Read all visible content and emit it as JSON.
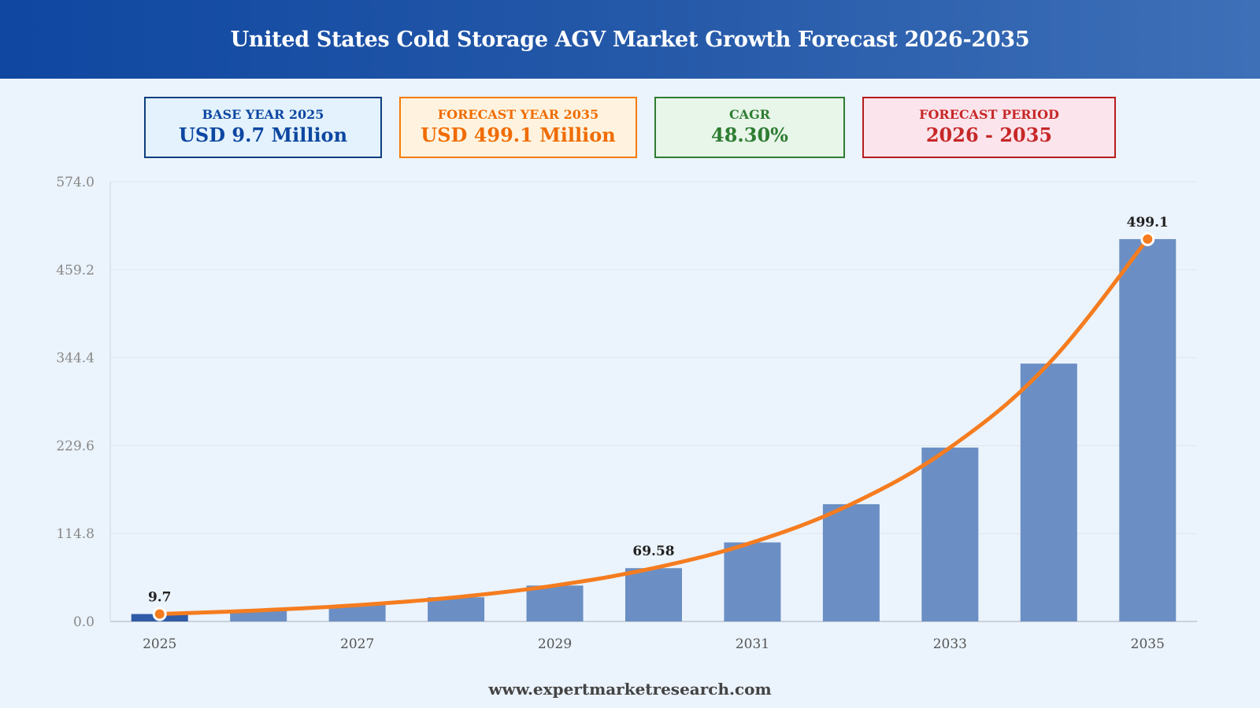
{
  "header": {
    "title": "United States Cold Storage AGV Market Growth Forecast 2026-2035"
  },
  "cards": {
    "base": {
      "label": "BASE YEAR 2025",
      "value": "USD 9.7 Million"
    },
    "forecast": {
      "label": "FORECAST YEAR 2035",
      "value": "USD 499.1 Million"
    },
    "cagr": {
      "label": "CAGR",
      "value": "48.30%"
    },
    "period": {
      "label": "FORECAST PERIOD",
      "value": "2026 - 2035"
    }
  },
  "footer": {
    "text": "www.expertmarketresearch.com"
  },
  "colors": {
    "bar": "#6b8fc4",
    "bar_base": "#2f5ca8",
    "line": "#f57c1f",
    "grid": "#dfe6ef"
  },
  "chart_data": {
    "type": "bar",
    "title": "",
    "xlabel": "",
    "ylabel": "",
    "categories": [
      "2025",
      "2026",
      "2027",
      "2028",
      "2029",
      "2030",
      "2031",
      "2032",
      "2033",
      "2034",
      "2035"
    ],
    "x_tick_labels": [
      "2025",
      "2027",
      "2029",
      "2031",
      "2033",
      "2035"
    ],
    "series": [
      {
        "type": "bar",
        "values": [
          9.7,
          14.4,
          21.3,
          31.6,
          46.9,
          69.58,
          103.2,
          153.1,
          227.0,
          336.6,
          499.1
        ]
      },
      {
        "type": "line",
        "values": [
          9.7,
          14.4,
          21.3,
          31.6,
          46.9,
          69.58,
          103.2,
          153.1,
          227.0,
          336.6,
          499.1
        ]
      }
    ],
    "data_labels": [
      {
        "category": "2025",
        "text": "9.7"
      },
      {
        "category": "2030",
        "text": "69.58"
      },
      {
        "category": "2035",
        "text": "499.1"
      }
    ],
    "highlight_points": [
      "2025",
      "2035"
    ],
    "y_ticks": [
      "0.0",
      "114.8",
      "229.6",
      "344.4",
      "459.2",
      "574.0"
    ],
    "ylim": [
      0,
      574
    ],
    "grid": true,
    "legend": "none"
  }
}
